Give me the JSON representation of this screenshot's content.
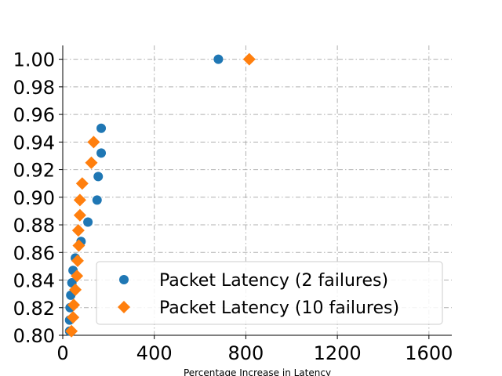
{
  "chart_data": {
    "type": "scatter",
    "title": "",
    "xlabel": "Percentage Increase in Latency",
    "ylabel": "",
    "xlim": [
      0,
      1700
    ],
    "ylim": [
      0.8,
      1.01
    ],
    "xticks": [
      0,
      400,
      800,
      1200,
      1600
    ],
    "yticks": [
      0.8,
      0.82,
      0.84,
      0.86,
      0.88,
      0.9,
      0.92,
      0.94,
      0.96,
      0.98,
      1.0
    ],
    "xtick_labels": [
      "0",
      "400",
      "800",
      "1200",
      "1600"
    ],
    "ytick_labels": [
      "0.80",
      "0.82",
      "0.84",
      "0.86",
      "0.88",
      "0.90",
      "0.92",
      "0.94",
      "0.96",
      "0.98",
      "1.00"
    ],
    "grid": true,
    "legend_position": "lower-right",
    "series": [
      {
        "name": "Packet Latency (2 failures)",
        "color": "#1f77b4",
        "marker": "circle",
        "points": [
          [
            30,
            0.803
          ],
          [
            30,
            0.811
          ],
          [
            32,
            0.82
          ],
          [
            35,
            0.829
          ],
          [
            40,
            0.838
          ],
          [
            45,
            0.847
          ],
          [
            55,
            0.856
          ],
          [
            80,
            0.868
          ],
          [
            110,
            0.882
          ],
          [
            150,
            0.898
          ],
          [
            155,
            0.915
          ],
          [
            168,
            0.932
          ],
          [
            168,
            0.95
          ],
          [
            680,
            1.0
          ]
        ]
      },
      {
        "name": "Packet Latency (10 failures)",
        "color": "#ff7f0e",
        "marker": "diamond",
        "points": [
          [
            38,
            0.803
          ],
          [
            45,
            0.813
          ],
          [
            48,
            0.822
          ],
          [
            55,
            0.833
          ],
          [
            62,
            0.843
          ],
          [
            65,
            0.854
          ],
          [
            70,
            0.865
          ],
          [
            68,
            0.876
          ],
          [
            75,
            0.887
          ],
          [
            75,
            0.898
          ],
          [
            85,
            0.91
          ],
          [
            125,
            0.925
          ],
          [
            135,
            0.94
          ],
          [
            815,
            1.0
          ]
        ]
      }
    ]
  }
}
